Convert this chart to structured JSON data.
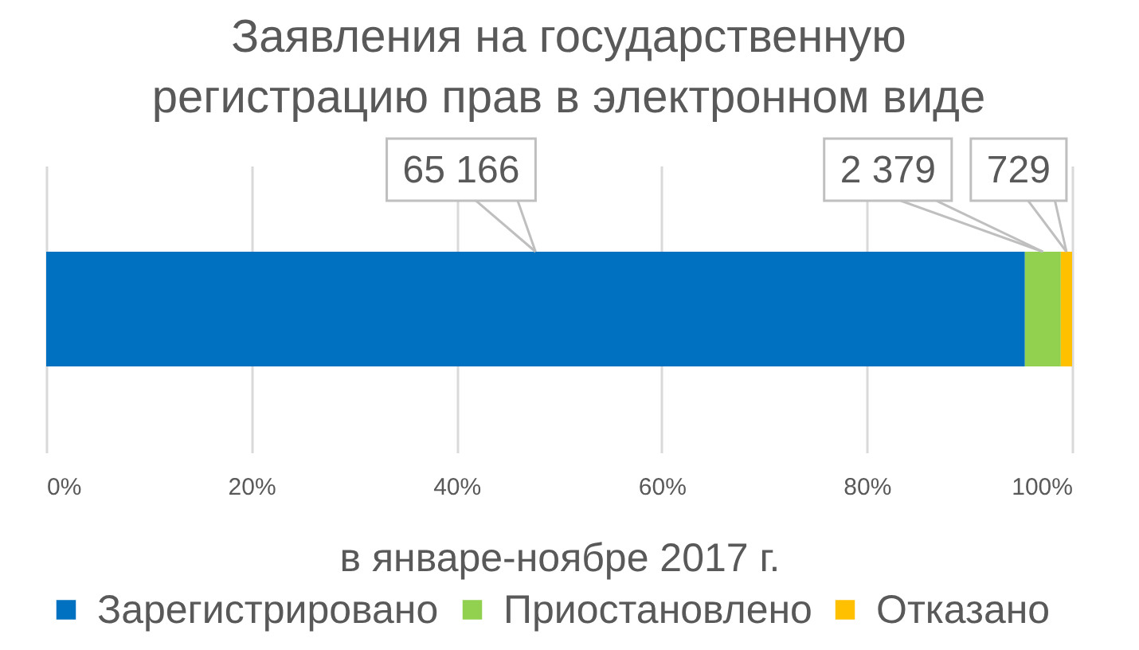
{
  "chart_data": {
    "type": "bar",
    "orientation": "horizontal",
    "stacked": true,
    "title": "Заявления на государственную регистрацию прав в электронном виде",
    "xlabel": "в январе-ноябре 2017 г.",
    "categories": [
      null
    ],
    "series": [
      {
        "name": "Зарегистрировано",
        "color": "#0070c0",
        "values": [
          95.4
        ]
      },
      {
        "name": "Приостановлено",
        "color": "#92d050",
        "values": [
          3.5
        ]
      },
      {
        "name": "Отказано",
        "color": "#ffc000",
        "values": [
          1.1
        ]
      }
    ],
    "annotations": [
      "65 166",
      "2 379",
      "729"
    ],
    "xlim": [
      0,
      100
    ],
    "xticks": [
      {
        "value": 0,
        "label": "0%"
      },
      {
        "value": 20,
        "label": "20%"
      },
      {
        "value": 40,
        "label": "40%"
      },
      {
        "value": 60,
        "label": "60%"
      },
      {
        "value": 80,
        "label": "80%"
      },
      {
        "value": 100,
        "label": "100%"
      }
    ],
    "grid": "x",
    "legend": "bottom"
  }
}
